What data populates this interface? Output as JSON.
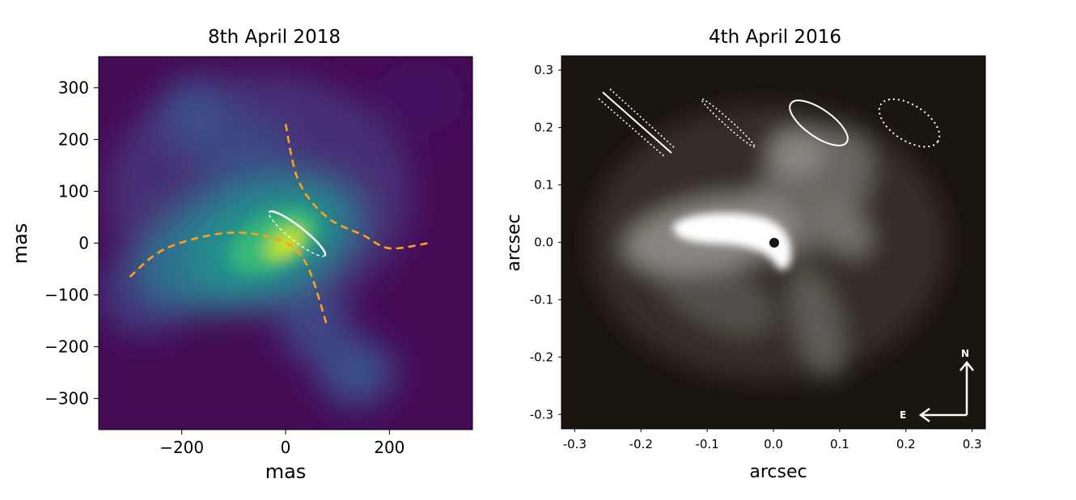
{
  "chart_data": [
    {
      "type": "heatmap",
      "title": "8th April 2018",
      "xlabel": "mas",
      "ylabel": "mas",
      "xlim": [
        -360,
        360
      ],
      "ylim": [
        -360,
        360
      ],
      "xticks": [
        -200,
        0,
        200
      ],
      "xtick_labels": [
        "−200",
        "0",
        "200"
      ],
      "yticks": [
        300,
        200,
        100,
        0,
        -100,
        -200,
        -300
      ],
      "ytick_labels": [
        "300",
        "200",
        "100",
        "0",
        "−100",
        "−200",
        "−300"
      ],
      "colormap": "viridis",
      "grid": false,
      "overlays": {
        "dashed_arcs_color": "#ff9f1c",
        "ellipse_color": "#ffffff",
        "dashed_arc_upper_right": [
          [
            0,
            230
          ],
          [
            25,
            120
          ],
          [
            80,
            50
          ],
          [
            150,
            15
          ],
          [
            200,
            -10
          ],
          [
            275,
            0
          ]
        ],
        "dashed_arc_lower_left": [
          [
            -300,
            -65
          ],
          [
            -230,
            -10
          ],
          [
            -110,
            20
          ],
          [
            -10,
            5
          ],
          [
            40,
            -40
          ],
          [
            80,
            -160
          ]
        ],
        "ellipse": {
          "center": [
            22,
            18
          ],
          "semi_major_mas": 68,
          "semi_minor_mas": 14,
          "angle_deg": -38
        }
      }
    },
    {
      "type": "heatmap",
      "title": "4th April 2016",
      "xlabel": "arcsec",
      "ylabel": "arcsec",
      "xlim": [
        -0.32,
        0.32
      ],
      "ylim": [
        -0.325,
        0.325
      ],
      "xticks": [
        -0.3,
        -0.2,
        -0.1,
        0.0,
        0.1,
        0.2,
        0.3
      ],
      "xtick_labels": [
        "-0.3",
        "-0.2",
        "-0.1",
        "0.0",
        "0.1",
        "0.2",
        "0.3"
      ],
      "yticks": [
        0.3,
        0.2,
        0.1,
        0.0,
        -0.1,
        -0.2,
        -0.3
      ],
      "ytick_labels": [
        "0.3",
        "0.2",
        "0.1",
        "0.0",
        "-0.1",
        "-0.2",
        "-0.3"
      ],
      "colormap": "grayscale",
      "grid": false,
      "compass": {
        "north": "N",
        "east": "E"
      }
    }
  ]
}
